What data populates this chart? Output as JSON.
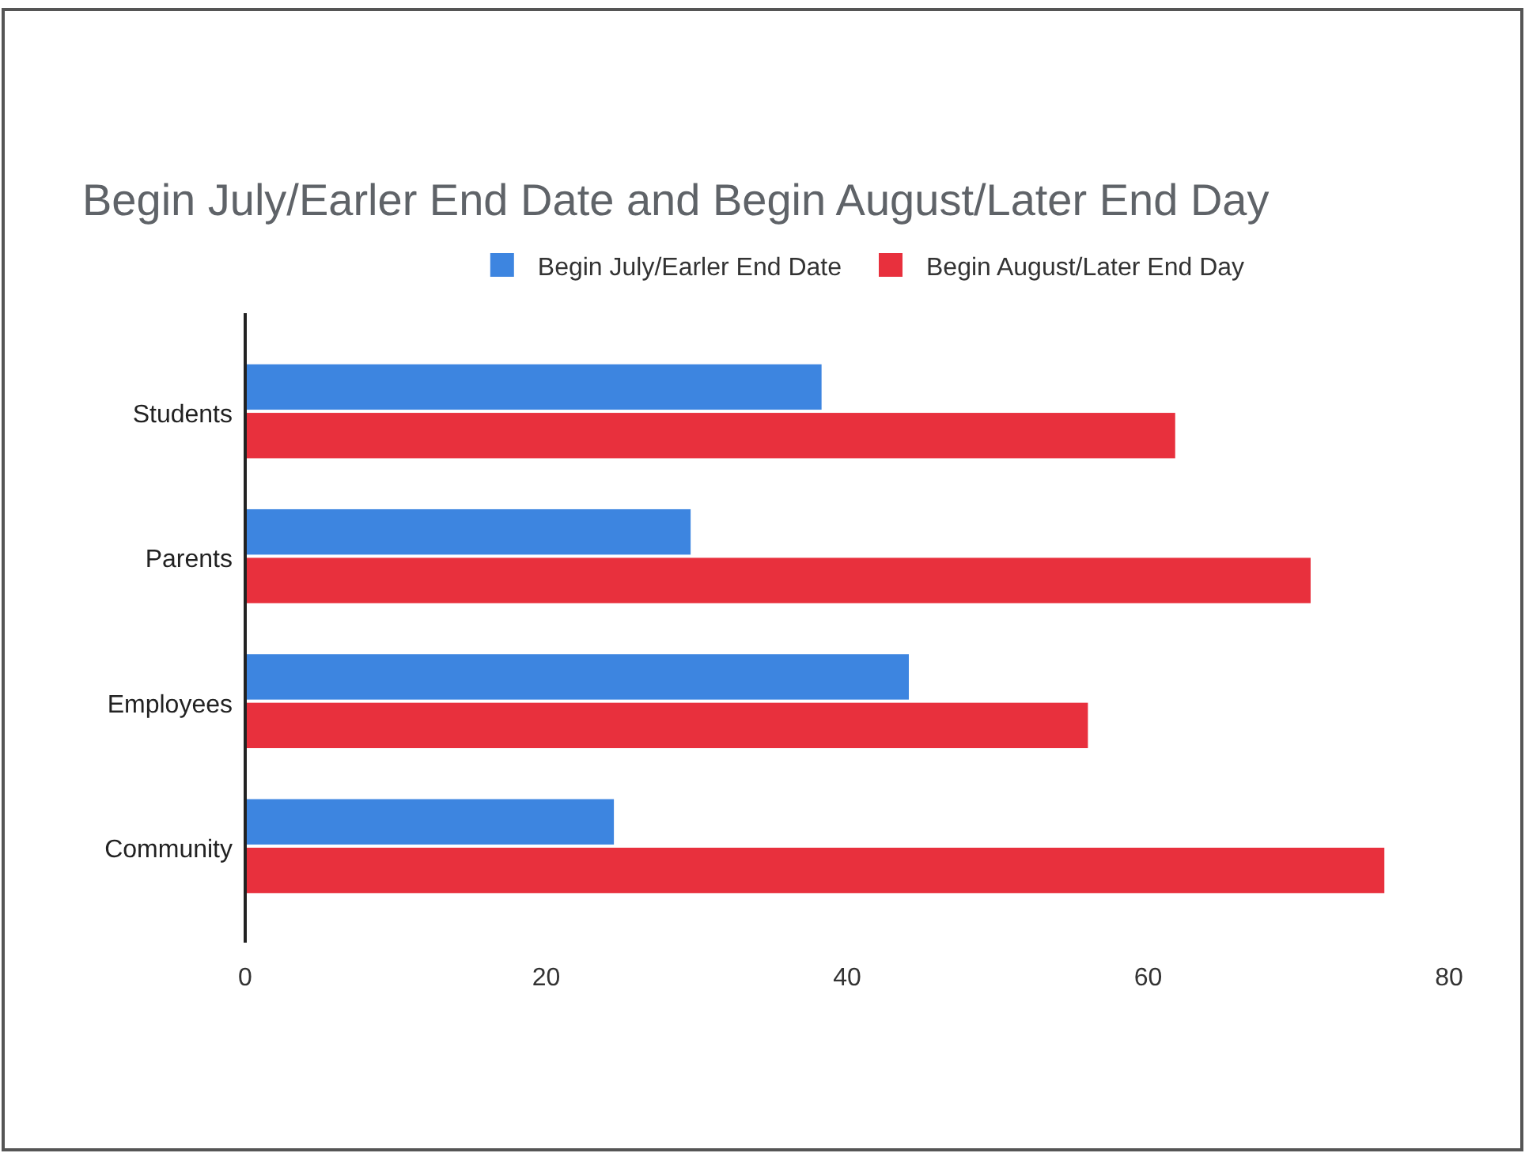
{
  "chart_data": {
    "type": "bar",
    "orientation": "horizontal",
    "title": "Begin July/Earler End Date and Begin August/Later End Day",
    "categories": [
      "Students",
      "Parents",
      "Employees",
      "Community"
    ],
    "series": [
      {
        "name": "Begin July/Earler End Date",
        "color": "#3d85e0",
        "values": [
          38.3,
          29.6,
          44.1,
          24.5
        ]
      },
      {
        "name": "Begin August/Later End Day",
        "color": "#e8303d",
        "values": [
          61.8,
          70.8,
          56,
          75.7
        ]
      }
    ],
    "xlim": [
      0,
      80
    ],
    "xticks": [
      0,
      20,
      40,
      60,
      80
    ],
    "grid": false,
    "legend": "top"
  }
}
